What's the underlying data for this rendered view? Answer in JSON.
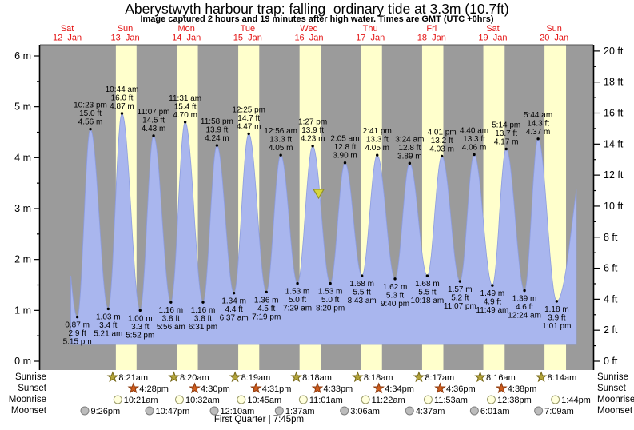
{
  "title": "Aberystwyth harbour trap: falling  ordinary tide at 3.3m (10.7ft)",
  "subtitle": "Image captured 2 hours and 19 minutes after high water. Times are GMT (UTC +0hrs)",
  "chart_data": {
    "type": "area",
    "title": "Aberystwyth harbour trap tide curve",
    "ylim_m": [
      0,
      6
    ],
    "left_tick_labels": [
      "0 m",
      "1 m",
      "2 m",
      "3 m",
      "4 m",
      "5 m",
      "6 m"
    ],
    "right_tick_labels": [
      "0 ft",
      "2 ft",
      "4 ft",
      "6 ft",
      "8 ft",
      "10 ft",
      "12 ft",
      "14 ft",
      "16 ft",
      "18 ft",
      "20 ft"
    ],
    "grid": false,
    "days": [
      {
        "name": "Sat",
        "date": "12–Jan",
        "midnight_t": 0
      },
      {
        "name": "Sun",
        "date": "13–Jan",
        "midnight_t": 24
      },
      {
        "name": "Mon",
        "date": "14–Jan",
        "midnight_t": 48
      },
      {
        "name": "Tue",
        "date": "15–Jan",
        "midnight_t": 72
      },
      {
        "name": "Wed",
        "date": "16–Jan",
        "midnight_t": 96
      },
      {
        "name": "Thu",
        "date": "17–Jan",
        "midnight_t": 120
      },
      {
        "name": "Fri",
        "date": "18–Jan",
        "midnight_t": 144
      },
      {
        "name": "Sat",
        "date": "19–Jan",
        "midnight_t": 168
      },
      {
        "name": "Sun",
        "date": "20–Jan",
        "midnight_t": 192
      }
    ],
    "daylight_bands_t": [
      [
        32.35,
        40.467
      ],
      [
        56.333,
        64.5
      ],
      [
        80.317,
        88.517
      ],
      [
        104.3,
        112.55
      ],
      [
        128.3,
        136.567
      ],
      [
        152.283,
        160.6
      ],
      [
        176.267,
        184.633
      ],
      [
        200.233,
        208.667
      ]
    ],
    "tide_events": [
      {
        "type": "low",
        "t": 17.25,
        "m": 0.87,
        "lines": [
          "0.87 m",
          "2.9 ft",
          "5:15 pm"
        ]
      },
      {
        "type": "high",
        "t": 22.383,
        "m": 4.56,
        "lines": [
          "10:23 pm",
          "15.0 ft",
          "4.56 m"
        ]
      },
      {
        "type": "low",
        "t": 29.35,
        "m": 1.03,
        "lines": [
          "1.03 m",
          "3.4 ft",
          "5:21 am"
        ]
      },
      {
        "type": "high",
        "t": 34.733,
        "m": 4.87,
        "lines": [
          "10:44 am",
          "16.0 ft",
          "4.87 m"
        ]
      },
      {
        "type": "low",
        "t": 41.867,
        "m": 1.0,
        "lines": [
          "1.00 m",
          "3.3 ft",
          "5:52 pm"
        ]
      },
      {
        "type": "high",
        "t": 47.117,
        "m": 4.43,
        "lines": [
          "11:07 pm",
          "14.5 ft",
          "4.43 m"
        ]
      },
      {
        "type": "low",
        "t": 53.933,
        "m": 1.16,
        "lines": [
          "1.16 m",
          "3.8 ft",
          "5:56 am"
        ]
      },
      {
        "type": "high",
        "t": 59.517,
        "m": 4.7,
        "lines": [
          "11:31 am",
          "15.4 ft",
          "4.70 m"
        ]
      },
      {
        "type": "low",
        "t": 66.517,
        "m": 1.16,
        "lines": [
          "1.16 m",
          "3.8 ft",
          "6:31 pm"
        ]
      },
      {
        "type": "high",
        "t": 71.967,
        "m": 4.24,
        "lines": [
          "11:58 pm",
          "13.9 ft",
          "4.24 m"
        ]
      },
      {
        "type": "low",
        "t": 78.617,
        "m": 1.34,
        "lines": [
          "1.34 m",
          "4.4 ft",
          "6:37 am"
        ]
      },
      {
        "type": "high",
        "t": 84.417,
        "m": 4.47,
        "lines": [
          "12:25 pm",
          "14.7 ft",
          "4.47 m"
        ]
      },
      {
        "type": "low",
        "t": 91.317,
        "m": 1.36,
        "lines": [
          "1.36 m",
          "4.5 ft",
          "7:19 pm"
        ]
      },
      {
        "type": "high",
        "t": 96.933,
        "m": 4.05,
        "lines": [
          "12:56 am",
          "13.3 ft",
          "4.05 m"
        ]
      },
      {
        "type": "low",
        "t": 103.483,
        "m": 1.53,
        "lines": [
          "1.53 m",
          "5.0 ft",
          "7:29 am"
        ]
      },
      {
        "type": "high",
        "t": 109.45,
        "m": 4.23,
        "lines": [
          "1:27 pm",
          "13.9 ft",
          "4.23 m"
        ]
      },
      {
        "type": "low",
        "t": 116.333,
        "m": 1.53,
        "lines": [
          "1.53 m",
          "5.0 ft",
          "8:20 pm"
        ]
      },
      {
        "type": "high",
        "t": 122.083,
        "m": 3.9,
        "lines": [
          "2:05 am",
          "12.8 ft",
          "3.90 m"
        ]
      },
      {
        "type": "low",
        "t": 128.717,
        "m": 1.68,
        "lines": [
          "1.68 m",
          "5.5 ft",
          "8:43 am"
        ]
      },
      {
        "type": "high",
        "t": 134.683,
        "m": 4.05,
        "lines": [
          "2:41 pm",
          "13.3 ft",
          "4.05 m"
        ]
      },
      {
        "type": "low",
        "t": 141.667,
        "m": 1.62,
        "lines": [
          "1.62 m",
          "5.3 ft",
          "9:40 pm"
        ]
      },
      {
        "type": "high",
        "t": 147.4,
        "m": 3.89,
        "lines": [
          "3:24 am",
          "12.8 ft",
          "3.89 m"
        ]
      },
      {
        "type": "low",
        "t": 154.3,
        "m": 1.68,
        "lines": [
          "1.68 m",
          "5.5 ft",
          "10:18 am"
        ]
      },
      {
        "type": "high",
        "t": 160.017,
        "m": 4.03,
        "lines": [
          "4:01 pm",
          "13.2 ft",
          "4.03 m"
        ]
      },
      {
        "type": "low",
        "t": 167.117,
        "m": 1.57,
        "lines": [
          "1.57 m",
          "5.2 ft",
          "11:07 pm"
        ]
      },
      {
        "type": "high",
        "t": 172.667,
        "m": 4.06,
        "lines": [
          "4:40 am",
          "13.3 ft",
          "4.06 m"
        ]
      },
      {
        "type": "low",
        "t": 179.817,
        "m": 1.49,
        "lines": [
          "1.49 m",
          "4.9 ft",
          "11:49 am"
        ]
      },
      {
        "type": "high",
        "t": 185.233,
        "m": 4.17,
        "lines": [
          "5:14 pm",
          "13.7 ft",
          "4.17 m"
        ]
      },
      {
        "type": "low",
        "t": 192.4,
        "m": 1.39,
        "lines": [
          "1.39 m",
          "4.6 ft",
          "12:24 am"
        ]
      },
      {
        "type": "high",
        "t": 197.733,
        "m": 4.37,
        "lines": [
          "5:44 am",
          "14.3 ft",
          "4.37 m"
        ]
      },
      {
        "type": "low",
        "t": 205.017,
        "m": 1.18,
        "lines": [
          "1.18 m",
          "3.9 ft",
          "1:01 pm"
        ]
      }
    ],
    "current_marker": {
      "t": 111.77,
      "m": 3.3
    },
    "curve_window_t": [
      14.55,
      213.1
    ],
    "fill_bottom_m": 0.33,
    "lead_peak": {
      "t": 9.3,
      "m": 4.4
    },
    "tail_peak": {
      "t": 218,
      "m": 4.6
    }
  },
  "almanac": {
    "rows": [
      {
        "label": "Sunrise",
        "icon": "sunrise-icon",
        "events": [
          {
            "t": 32.35,
            "time": "8:21am"
          },
          {
            "t": 56.333,
            "time": "8:20am"
          },
          {
            "t": 80.317,
            "time": "8:19am"
          },
          {
            "t": 104.3,
            "time": "8:18am"
          },
          {
            "t": 128.3,
            "time": "8:18am"
          },
          {
            "t": 152.283,
            "time": "8:17am"
          },
          {
            "t": 176.267,
            "time": "8:16am"
          },
          {
            "t": 200.233,
            "time": "8:14am"
          }
        ]
      },
      {
        "label": "Sunset",
        "icon": "sunset-icon",
        "events": [
          {
            "t": 40.467,
            "time": "4:28pm"
          },
          {
            "t": 64.5,
            "time": "4:30pm"
          },
          {
            "t": 88.517,
            "time": "4:31pm"
          },
          {
            "t": 112.55,
            "time": "4:33pm"
          },
          {
            "t": 136.567,
            "time": "4:34pm"
          },
          {
            "t": 160.6,
            "time": "4:36pm"
          },
          {
            "t": 184.633,
            "time": "4:38pm"
          }
        ]
      },
      {
        "label": "Moonrise",
        "icon": "moonrise-icon",
        "events": [
          {
            "t": 34.35,
            "time": "10:21am"
          },
          {
            "t": 58.533,
            "time": "10:32am"
          },
          {
            "t": 82.75,
            "time": "10:45am"
          },
          {
            "t": 107.017,
            "time": "11:01am"
          },
          {
            "t": 131.367,
            "time": "11:22am"
          },
          {
            "t": 155.883,
            "time": "11:53am"
          },
          {
            "t": 180.633,
            "time": "12:38pm"
          },
          {
            "t": 205.733,
            "time": "1:44pm"
          }
        ]
      },
      {
        "label": "Moonset",
        "icon": "moonset-icon",
        "events": [
          {
            "t": 21.433,
            "time": "9:26pm"
          },
          {
            "t": 46.783,
            "time": "10:47pm"
          },
          {
            "t": 72.167,
            "time": "12:10am"
          },
          {
            "t": 97.617,
            "time": "1:37am"
          },
          {
            "t": 123.1,
            "time": "3:06am"
          },
          {
            "t": 148.617,
            "time": "4:37am"
          },
          {
            "t": 174.017,
            "time": "6:01am"
          },
          {
            "t": 199.15,
            "time": "7:09am"
          }
        ]
      }
    ],
    "footer": "First Quarter | 7:45pm"
  },
  "colors": {
    "plot_bg": "#9b9b9b",
    "daylight_band": "#ffffcc",
    "tide_fill": "#a9b6ee",
    "tide_stroke": "#8d9de0",
    "day_label": "#e31212",
    "axis_line": "#000000",
    "sunrise_fill": "#b3a43a",
    "sunrise_stroke": "#77691a",
    "sunset_fill": "#cf5c1d",
    "sunset_stroke": "#8c3a0e",
    "moonrise_fill": "#ffffdc",
    "moonrise_stroke": "#9a9a6a",
    "moonset_fill": "#bcbcbc",
    "moonset_stroke": "#7e7e7e",
    "marker_fill": "#d6d63a",
    "marker_stroke": "#8e8e2a"
  }
}
